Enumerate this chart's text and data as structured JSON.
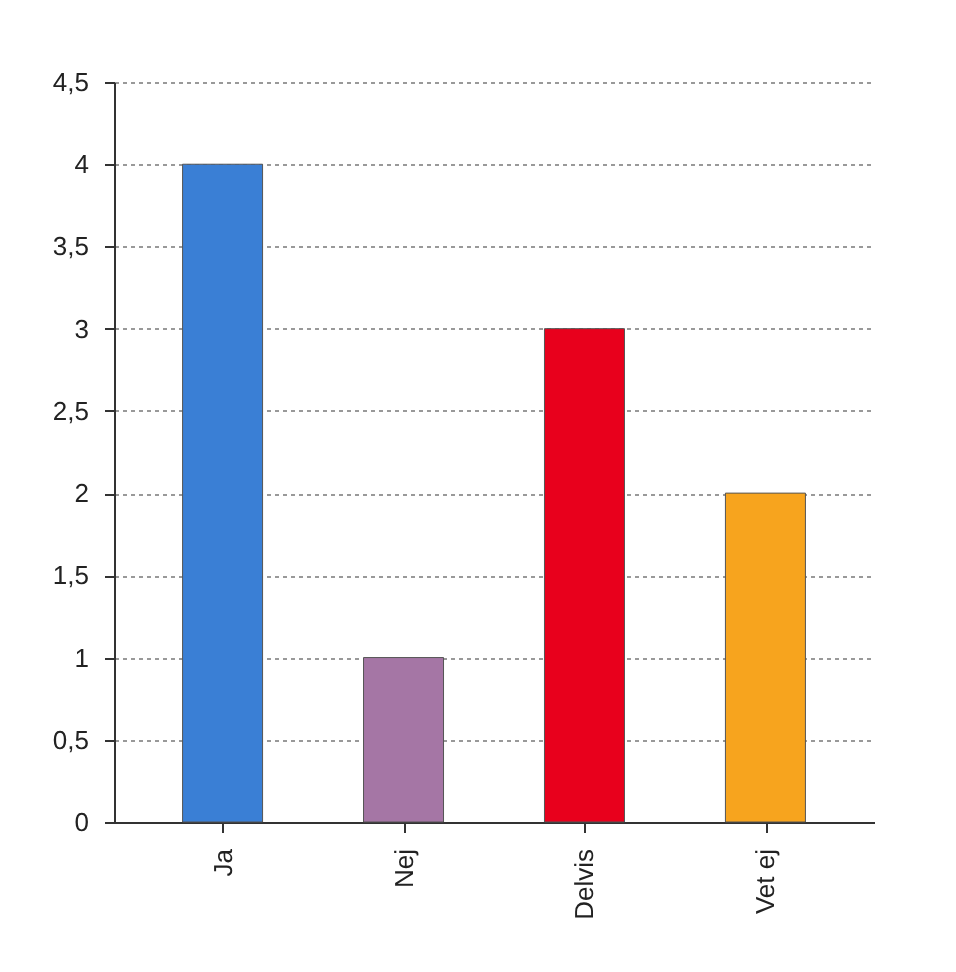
{
  "chart_data": {
    "type": "bar",
    "categories": [
      "Ja",
      "Nej",
      "Delvis",
      "Vet ej"
    ],
    "values": [
      4,
      1,
      3,
      2
    ],
    "colors": [
      "#3a7fd5",
      "#a576a5",
      "#e8001c",
      "#f7a41e"
    ],
    "ylim": [
      0,
      4.5
    ],
    "yticks": [
      0,
      {
        "value": 0.5,
        "label": "0,5"
      },
      1,
      {
        "value": 1.5,
        "label": "1,5"
      },
      2,
      {
        "value": 2.5,
        "label": "2,5"
      },
      3,
      {
        "value": 3.5,
        "label": "3,5"
      },
      4,
      {
        "value": 4.5,
        "label": "4,5"
      }
    ],
    "grid": "y"
  }
}
